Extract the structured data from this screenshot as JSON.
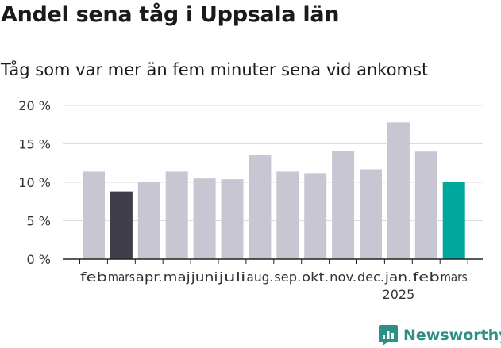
{
  "title": "Andel sena tåg i Uppsala län",
  "subtitle": "Tåg som var mer än fem minuter sena vid ankomst",
  "brand": {
    "name": "Newsworthy",
    "icon": "bar-chart-logo-icon",
    "color": "#2f8f86"
  },
  "chart_data": {
    "type": "bar",
    "title": "Andel sena tåg i Uppsala län",
    "subtitle": "Tåg som var mer än fem minuter sena vid ankomst",
    "categories": [
      "feb",
      "mars",
      "apr.",
      "maj",
      "juni",
      "juli",
      "aug.",
      "sep.",
      "okt.",
      "nov.",
      "dec.",
      "jan.",
      "feb",
      "mars"
    ],
    "year_labels": [
      {
        "index": 11,
        "label": "2025"
      }
    ],
    "values": [
      11.4,
      8.8,
      10.0,
      11.4,
      10.5,
      10.4,
      13.5,
      11.4,
      11.2,
      14.1,
      11.7,
      17.8,
      14.0,
      10.1
    ],
    "highlight": {
      "1": "#403e4a",
      "13": "#00a79d"
    },
    "default_color": "#c8c6d2",
    "ylim": [
      0,
      20
    ],
    "yticks": [
      0,
      5,
      10,
      15,
      20
    ],
    "ytick_labels": [
      "0 %",
      "5 %",
      "10 %",
      "15 %",
      "20 %"
    ],
    "xlabel": "",
    "ylabel": "",
    "grid": true,
    "legend": "none"
  }
}
